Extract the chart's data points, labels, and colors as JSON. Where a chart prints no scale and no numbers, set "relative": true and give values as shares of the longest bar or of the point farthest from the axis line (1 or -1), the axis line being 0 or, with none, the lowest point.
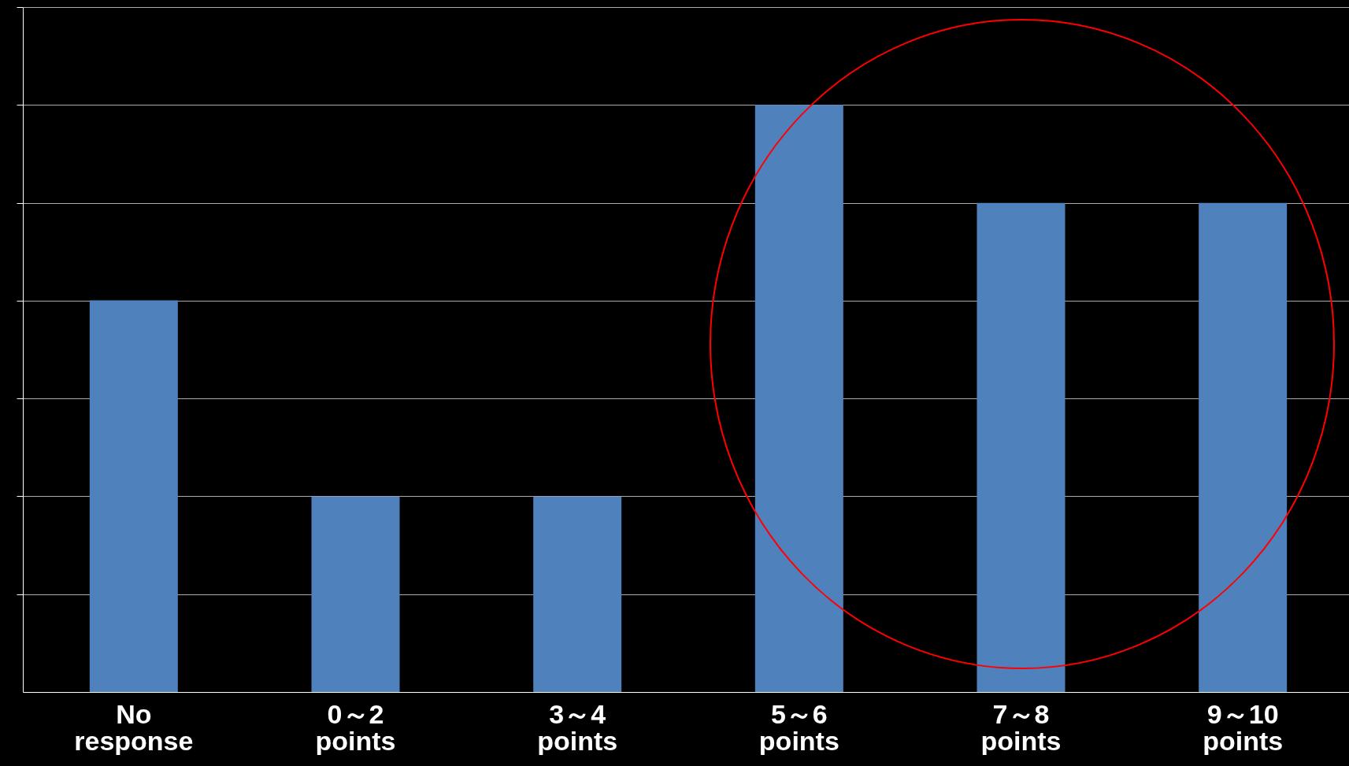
{
  "chart_data": {
    "type": "bar",
    "relative": true,
    "grid": "y",
    "categories": [
      "No response",
      "0～2 points",
      "3～4 points",
      "5～6 points",
      "7～8 points",
      "9～10 points"
    ],
    "values": [
      0.667,
      0.333,
      0.333,
      1,
      0.833,
      0.833
    ],
    "color": "#4f81bd"
  }
}
